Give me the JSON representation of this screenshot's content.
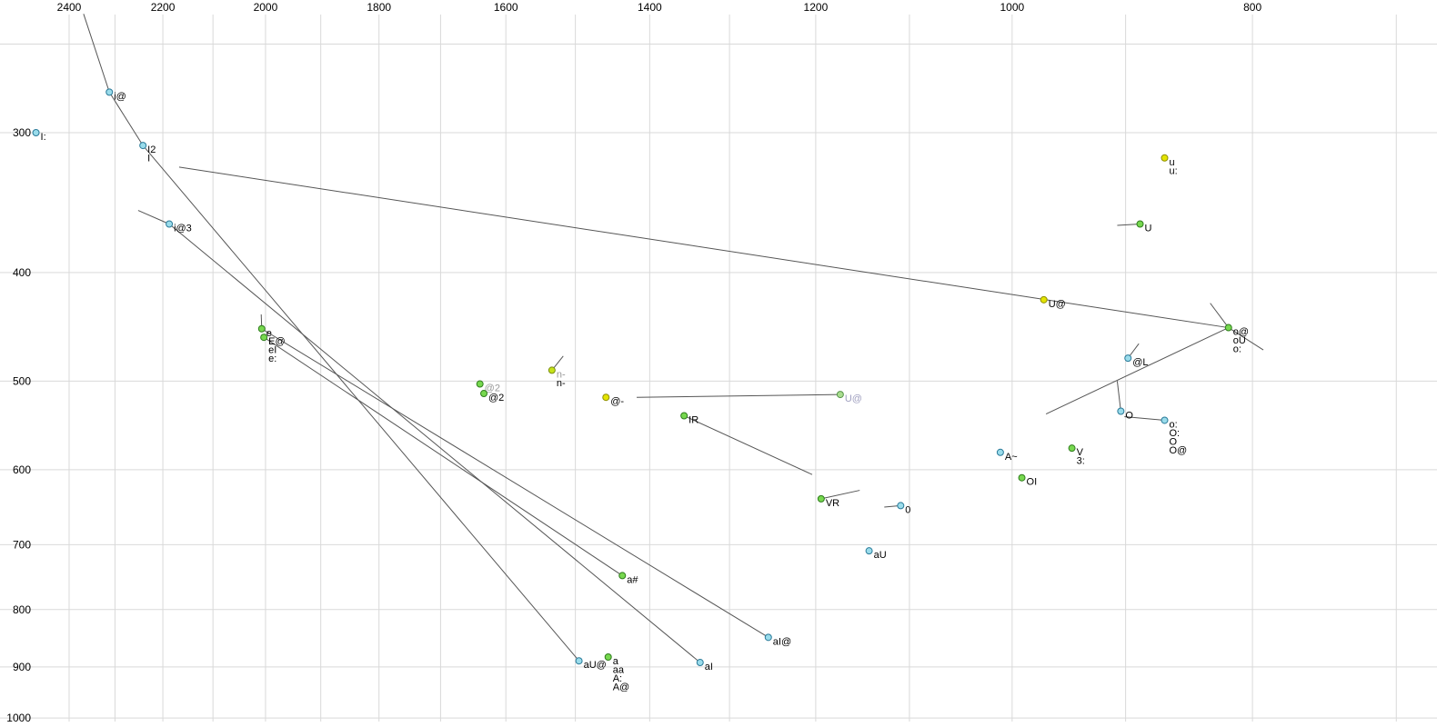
{
  "chart_data": {
    "type": "scatter",
    "title": "",
    "description": "Vowel formant chart: F2 (Hz) decreasing left-to-right on top axis, F1 (Hz) increasing downward on left axis, both log-scaled. Points are vowel tokens labelled in SAMPA-style notation; line segments show diphthong/trajectory paths.",
    "x_axis": {
      "position": "top",
      "scale": "log",
      "direction": "decreasing-rightward",
      "ticks": [
        2400,
        2200,
        2000,
        1800,
        1600,
        1400,
        1200,
        1000,
        800
      ],
      "minor_ticks": [
        2300,
        2100,
        1900,
        1700,
        1500,
        1300,
        1100,
        900,
        700
      ]
    },
    "y_axis": {
      "position": "left",
      "scale": "log",
      "direction": "increasing-downward",
      "ticks": [
        300,
        400,
        500,
        600,
        700,
        800,
        900,
        1000
      ],
      "minor_ticks": [
        250
      ]
    },
    "points": [
      {
        "labels": [
          "i@"
        ],
        "f2": 2312,
        "f1": 276,
        "c": "cyan"
      },
      {
        "labels": [
          "I:"
        ],
        "f2": 2475,
        "f1": 300,
        "c": "cyan"
      },
      {
        "labels": [
          "I2",
          "I"
        ],
        "f2": 2241,
        "f1": 308,
        "c": "cyan"
      },
      {
        "labels": [
          "i@3"
        ],
        "f2": 2187,
        "f1": 362,
        "c": "cyan"
      },
      {
        "labels": [
          "e"
        ],
        "f2": 2007,
        "f1": 449,
        "c": "green"
      },
      {
        "labels": [
          "E@",
          "eI",
          "e:"
        ],
        "f2": 2003,
        "f1": 457,
        "c": "green"
      },
      {
        "labels": [
          "@2"
        ],
        "f2": 1639,
        "f1": 503,
        "c": "green",
        "label_colors": [
          "#999999"
        ]
      },
      {
        "labels": [
          "@2"
        ],
        "f2": 1633,
        "f1": 513,
        "c": "green"
      },
      {
        "labels": [
          "n-",
          "n-"
        ],
        "f2": 1533,
        "f1": 489,
        "c": "yellowgreen",
        "label_colors": [
          "#999999",
          "#000000"
        ]
      },
      {
        "labels": [
          "@-"
        ],
        "f2": 1458,
        "f1": 517,
        "c": "yellow"
      },
      {
        "labels": [
          "IR"
        ],
        "f2": 1356,
        "f1": 537,
        "c": "green"
      },
      {
        "labels": [
          "U@"
        ],
        "f2": 1173,
        "f1": 514,
        "c": "lightgreen",
        "label_colors": [
          "#a0a0c0"
        ]
      },
      {
        "labels": [
          "U@"
        ],
        "f2": 971,
        "f1": 423,
        "c": "yellow"
      },
      {
        "labels": [
          "u",
          "u:"
        ],
        "f2": 868,
        "f1": 316,
        "c": "yellow"
      },
      {
        "labels": [
          "U"
        ],
        "f2": 888,
        "f1": 362,
        "c": "green"
      },
      {
        "labels": [
          "o@",
          "oU",
          "o:"
        ],
        "f2": 818,
        "f1": 448,
        "c": "green"
      },
      {
        "labels": [
          "@L"
        ],
        "f2": 898,
        "f1": 477,
        "c": "cyan"
      },
      {
        "labels": [
          "O"
        ],
        "f2": 904,
        "f1": 532,
        "c": "cyan"
      },
      {
        "labels": [
          "o:",
          "O:",
          "O",
          "O@"
        ],
        "f2": 868,
        "f1": 542,
        "c": "cyan"
      },
      {
        "labels": [
          "V",
          "3:"
        ],
        "f2": 946,
        "f1": 574,
        "c": "green"
      },
      {
        "labels": [
          "A~"
        ],
        "f2": 1011,
        "f1": 579,
        "c": "cyan"
      },
      {
        "labels": [
          "OI"
        ],
        "f2": 991,
        "f1": 610,
        "c": "green"
      },
      {
        "labels": [
          "VR"
        ],
        "f2": 1194,
        "f1": 637,
        "c": "green"
      },
      {
        "labels": [
          "0"
        ],
        "f2": 1109,
        "f1": 646,
        "c": "cyan"
      },
      {
        "labels": [
          "aU"
        ],
        "f2": 1142,
        "f1": 709,
        "c": "cyan"
      },
      {
        "labels": [
          "a#"
        ],
        "f2": 1436,
        "f1": 746,
        "c": "green"
      },
      {
        "labels": [
          "aI@"
        ],
        "f2": 1254,
        "f1": 847,
        "c": "cyan"
      },
      {
        "labels": [
          "aI"
        ],
        "f2": 1336,
        "f1": 892,
        "c": "cyan"
      },
      {
        "labels": [
          "aU@"
        ],
        "f2": 1495,
        "f1": 889,
        "c": "cyan"
      },
      {
        "labels": [
          "a",
          "aa",
          "A:",
          "A@"
        ],
        "f2": 1455,
        "f1": 882,
        "c": "green"
      }
    ],
    "segments": [
      {
        "f2a": 2368,
        "f1a": 235,
        "f2b": 2312,
        "f1b": 276
      },
      {
        "f2a": 2312,
        "f1a": 276,
        "f2b": 2241,
        "f1b": 308
      },
      {
        "f2a": 2251,
        "f1a": 352,
        "f2b": 2187,
        "f1b": 362
      },
      {
        "f2a": 2167,
        "f1a": 322,
        "f2b": 818,
        "f1b": 448
      },
      {
        "f2a": 2241,
        "f1a": 308,
        "f2b": 1495,
        "f1b": 889
      },
      {
        "f2a": 2187,
        "f1a": 362,
        "f2b": 1336,
        "f1b": 892
      },
      {
        "f2a": 2007,
        "f1a": 449,
        "f2b": 1254,
        "f1b": 847
      },
      {
        "f2a": 2003,
        "f1a": 457,
        "f2b": 1436,
        "f1b": 746
      },
      {
        "f2a": 2008,
        "f1a": 436,
        "f2b": 2007,
        "f1b": 449
      },
      {
        "f2a": 1517,
        "f1a": 475,
        "f2b": 1533,
        "f1b": 489
      },
      {
        "f2a": 1417,
        "f1a": 517,
        "f2b": 1173,
        "f1b": 514
      },
      {
        "f2a": 969,
        "f1a": 535,
        "f2b": 818,
        "f1b": 448
      },
      {
        "f2a": 832,
        "f1a": 426,
        "f2b": 818,
        "f1b": 448
      },
      {
        "f2a": 818,
        "f1a": 448,
        "f2b": 792,
        "f1b": 469
      },
      {
        "f2a": 1356,
        "f1a": 537,
        "f2b": 1204,
        "f1b": 606
      },
      {
        "f2a": 1194,
        "f1a": 637,
        "f2b": 1152,
        "f1b": 626
      },
      {
        "f2a": 1126,
        "f1a": 648,
        "f2b": 1109,
        "f1b": 646
      },
      {
        "f2a": 907,
        "f1a": 363,
        "f2b": 888,
        "f1b": 362
      },
      {
        "f2a": 907,
        "f1a": 500,
        "f2b": 904,
        "f1b": 532
      },
      {
        "f2a": 901,
        "f1a": 538,
        "f2b": 868,
        "f1b": 542
      },
      {
        "f2a": 889,
        "f1a": 463,
        "f2b": 898,
        "f1b": 477
      }
    ],
    "colors": {
      "cyan": {
        "fill": "#9adceb",
        "stroke": "#2a7a99"
      },
      "green": {
        "fill": "#77d84f",
        "stroke": "#2f7d1d"
      },
      "lightgreen": {
        "fill": "#a9dd8f",
        "stroke": "#56934a"
      },
      "yellow": {
        "fill": "#e4e400",
        "stroke": "#8f8f00"
      },
      "yellowgreen": {
        "fill": "#c6e319",
        "stroke": "#7b8f10"
      }
    },
    "grid_color": "#d9d9d9",
    "line_color": "#555555",
    "default_label_color": "#000000",
    "background": "#ffffff"
  }
}
